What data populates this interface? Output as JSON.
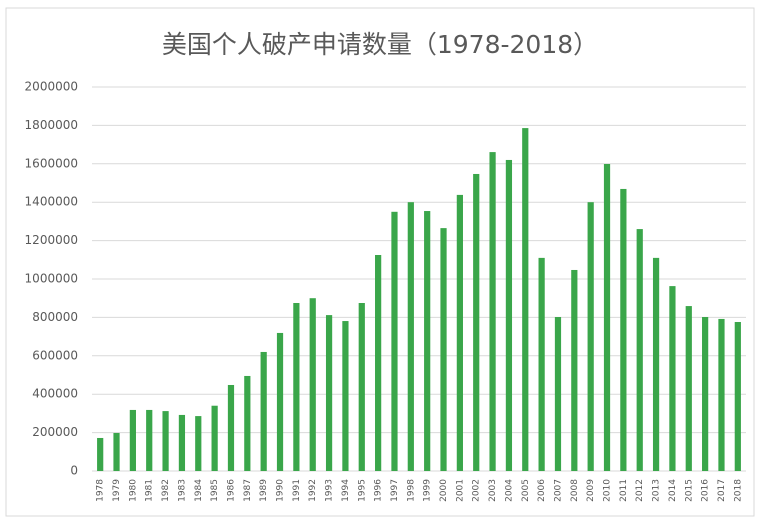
{
  "chart_data": {
    "type": "bar",
    "title": "美国个人破产申请数量（1978-2018）",
    "categories": [
      "1978",
      "1979",
      "1980",
      "1981",
      "1982",
      "1983",
      "1984",
      "1985",
      "1986",
      "1987",
      "1989",
      "1990",
      "1991",
      "1992",
      "1993",
      "1994",
      "1995",
      "1996",
      "1997",
      "1998",
      "1999",
      "2000",
      "2001",
      "2002",
      "2003",
      "2004",
      "2005",
      "2006",
      "2007",
      "2008",
      "2009",
      "2010",
      "2011",
      "2012",
      "2013",
      "2014",
      "2015",
      "2016",
      "2017",
      "2018"
    ],
    "values": [
      172000,
      198000,
      318000,
      318000,
      312000,
      292000,
      286000,
      340000,
      448000,
      495000,
      620000,
      719000,
      875000,
      900000,
      812000,
      781000,
      875000,
      1125000,
      1350000,
      1400000,
      1354000,
      1265000,
      1438000,
      1547000,
      1661000,
      1620000,
      1786000,
      1110000,
      802000,
      1047000,
      1400000,
      1599000,
      1469000,
      1260000,
      1110000,
      963000,
      859000,
      802000,
      792000,
      776000
    ],
    "color": "#3aa64a",
    "ylim": [
      0,
      2000000
    ],
    "yticks": [
      0,
      200000,
      400000,
      600000,
      800000,
      1000000,
      1200000,
      1400000,
      1600000,
      1800000,
      2000000
    ],
    "grid": true
  }
}
